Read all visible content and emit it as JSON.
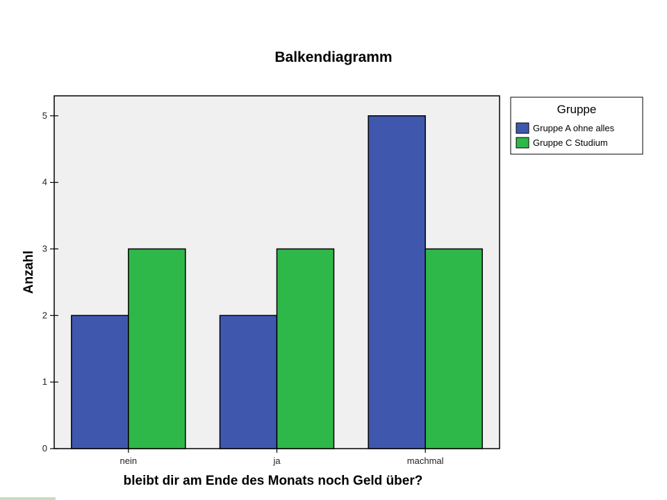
{
  "chart_data": {
    "type": "bar",
    "title": "Balkendiagramm",
    "xlabel": "bleibt dir am Ende des Monats noch Geld über?",
    "ylabel": "Anzahl",
    "categories": [
      "nein",
      "ja",
      "machmal"
    ],
    "series": [
      {
        "name": "Gruppe A ohne alles",
        "values": [
          2,
          2,
          5
        ],
        "color": "#3f58ae"
      },
      {
        "name": "Gruppe C Studium",
        "values": [
          3,
          3,
          3
        ],
        "color": "#2fb84a"
      }
    ],
    "ylim": [
      0,
      5.3
    ],
    "yticks": [
      0,
      1,
      2,
      3,
      4,
      5
    ],
    "legend": {
      "title": "Gruppe",
      "placement": "right"
    },
    "grid": false,
    "plot_background": "#f0f0f0"
  }
}
